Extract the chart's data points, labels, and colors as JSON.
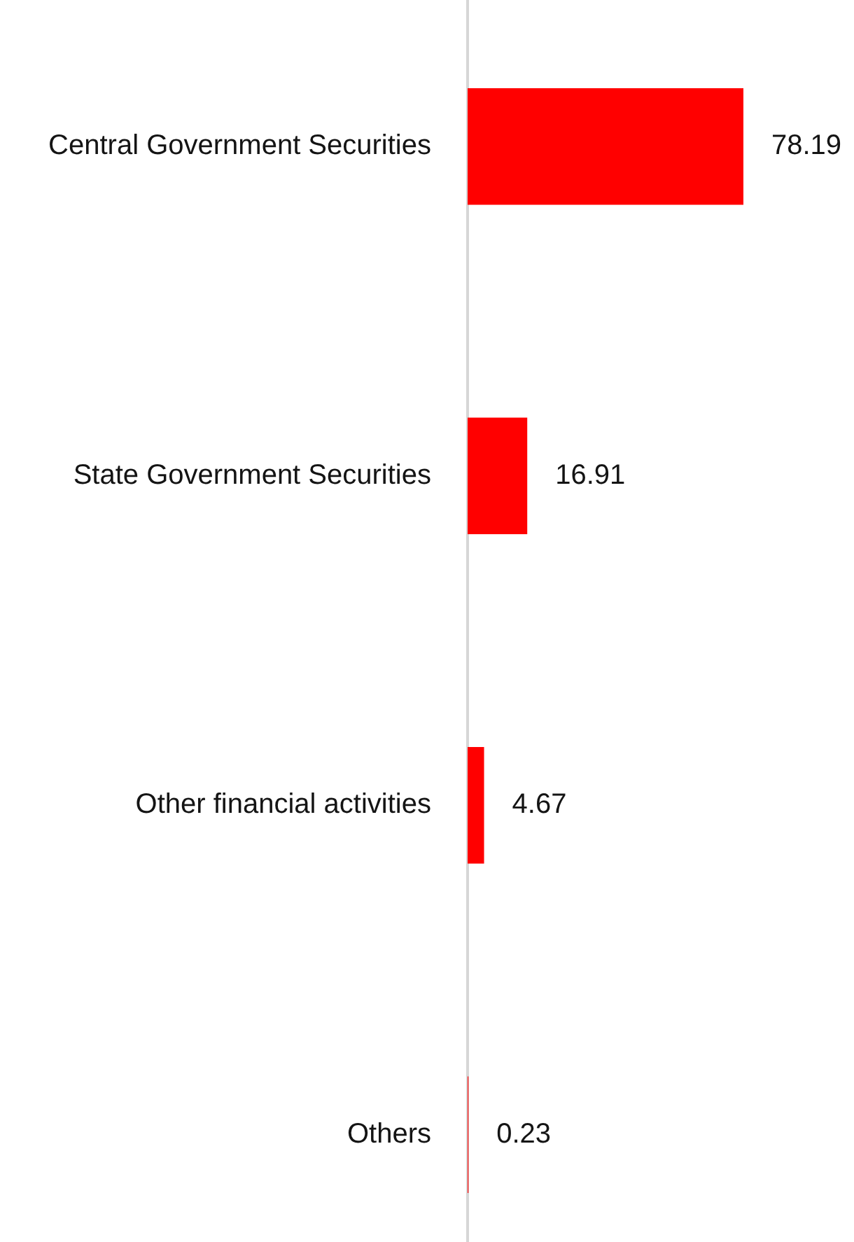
{
  "chart_data": {
    "type": "bar",
    "orientation": "horizontal",
    "categories": [
      "Central Government Securities",
      "State Government Securities",
      "Other financial activities",
      "Others"
    ],
    "values": [
      78.19,
      16.91,
      4.67,
      0.23
    ],
    "color": "#ff0000",
    "data_labels": true,
    "tick_labels": "y"
  }
}
